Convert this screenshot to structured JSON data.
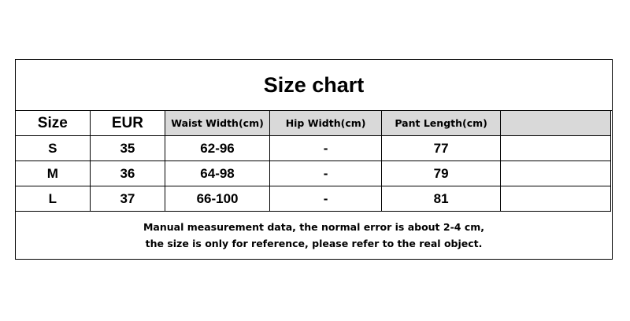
{
  "title": "Size chart",
  "columns": [
    "Size",
    "EUR",
    "Waist Width(cm)",
    "Hip Width(cm)",
    "Pant Length(cm)",
    ""
  ],
  "rows": [
    [
      "S",
      "35",
      "62-96",
      "-",
      "77",
      ""
    ],
    [
      "M",
      "36",
      "64-98",
      "-",
      "79",
      ""
    ],
    [
      "L",
      "37",
      "66-100",
      "-",
      "81",
      ""
    ]
  ],
  "footer": {
    "line1": "Manual measurement data, the normal error is about 2-4 cm,",
    "line2": "the size is only for reference, please refer to the real object."
  },
  "colors": {
    "header_bg": "#d9d9d9",
    "border": "#000000"
  }
}
